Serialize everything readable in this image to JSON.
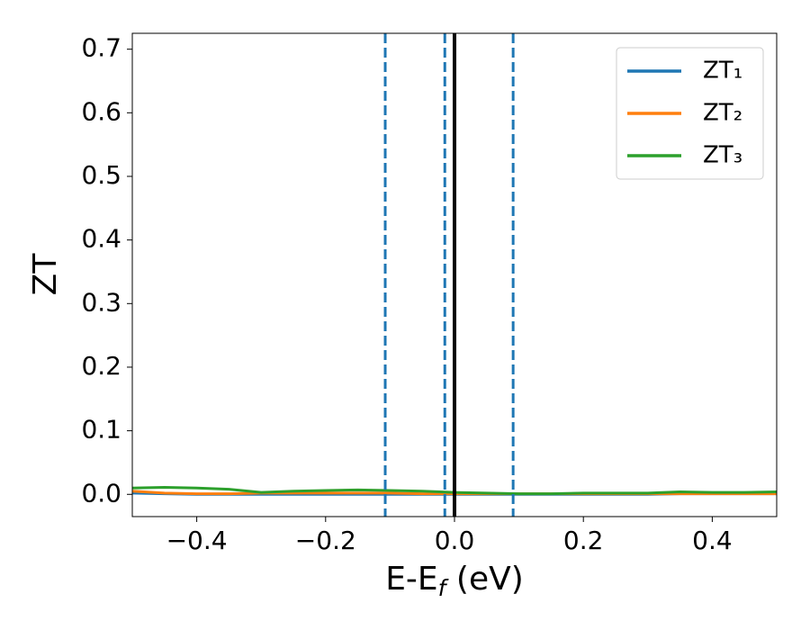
{
  "chart_data": {
    "type": "line",
    "xlabel": {
      "main": "E-E",
      "sub": "f",
      "rest": " (eV)"
    },
    "ylabel": "ZT",
    "x": [
      -0.5,
      -0.45,
      -0.4,
      -0.35,
      -0.3,
      -0.25,
      -0.2,
      -0.15,
      -0.1,
      -0.05,
      0,
      0.05,
      0.1,
      0.15,
      0.2,
      0.25,
      0.3,
      0.35,
      0.4,
      0.45,
      0.5
    ],
    "series": [
      {
        "name": "ZT₁",
        "color": "#1f77b4",
        "values": [
          0.002,
          0.001,
          0,
          0,
          0,
          0,
          0,
          0,
          0,
          0,
          0,
          0,
          0,
          0,
          0,
          0,
          0,
          0.001,
          0.001,
          0.001,
          0.001
        ]
      },
      {
        "name": "ZT₂",
        "color": "#ff7f0e",
        "values": [
          0.005,
          0.002,
          0.001,
          0.001,
          0.002,
          0.002,
          0.002,
          0.002,
          0.002,
          0.001,
          0.001,
          0.001,
          0.001,
          0.001,
          0.001,
          0.001,
          0.001,
          0.001,
          0.001,
          0.001,
          0.001
        ]
      },
      {
        "name": "ZT₃",
        "color": "#2ca02c",
        "values": [
          0.01,
          0.011,
          0.01,
          0.008,
          0.003,
          0.005,
          0.006,
          0.007,
          0.006,
          0.005,
          0.003,
          0.002,
          0.001,
          0.001,
          0.002,
          0.002,
          0.002,
          0.004,
          0.003,
          0.003,
          0.004
        ]
      }
    ],
    "vlines": [
      {
        "x": -0.1075,
        "color": "#1f77b4",
        "style": "dashed"
      },
      {
        "x": -0.015,
        "color": "#1f77b4",
        "style": "dashed"
      },
      {
        "x": 0.091,
        "color": "#1f77b4",
        "style": "dashed"
      },
      {
        "x": 0,
        "color": "#000000",
        "style": "solid"
      }
    ],
    "xlim": [
      -0.5,
      0.5
    ],
    "ylim": [
      -0.035,
      0.725
    ],
    "xticks": [
      {
        "value": -0.4,
        "label": "−0.4"
      },
      {
        "value": -0.2,
        "label": "−0.2"
      },
      {
        "value": 0,
        "label": "0.0"
      },
      {
        "value": 0.2,
        "label": "0.2"
      },
      {
        "value": 0.4,
        "label": "0.4"
      }
    ],
    "yticks": [
      {
        "value": 0,
        "label": "0.0"
      },
      {
        "value": 0.1,
        "label": "0.1"
      },
      {
        "value": 0.2,
        "label": "0.2"
      },
      {
        "value": 0.3,
        "label": "0.3"
      },
      {
        "value": 0.4,
        "label": "0.4"
      },
      {
        "value": 0.5,
        "label": "0.5"
      },
      {
        "value": 0.6,
        "label": "0.6"
      },
      {
        "value": 0.7,
        "label": "0.7"
      }
    ],
    "legend": "upper right",
    "grid": false
  }
}
